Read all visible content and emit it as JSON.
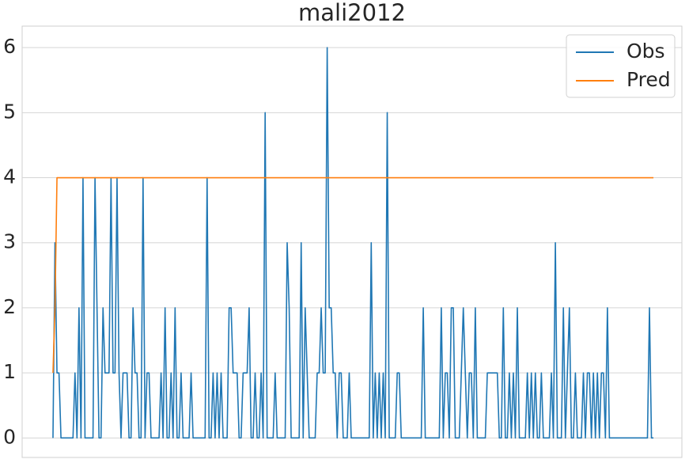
{
  "chart_data": {
    "type": "line",
    "title": "mali2012",
    "series": [
      {
        "name": "Obs",
        "color": "#1f77b4",
        "values": [
          0,
          3,
          1,
          1,
          0,
          0,
          0,
          0,
          0,
          0,
          0,
          1,
          0,
          2,
          0,
          4,
          0,
          0,
          0,
          0,
          0,
          4,
          2,
          0,
          0,
          2,
          1,
          1,
          1,
          4,
          1,
          1,
          4,
          1,
          0,
          1,
          1,
          1,
          0,
          0,
          2,
          1,
          1,
          0,
          0,
          4,
          0,
          1,
          1,
          0,
          0,
          0,
          0,
          0,
          1,
          0,
          2,
          0,
          0,
          1,
          0,
          2,
          0,
          0,
          1,
          0,
          0,
          0,
          0,
          1,
          0,
          0,
          0,
          0,
          0,
          0,
          0,
          4,
          0,
          0,
          1,
          0,
          1,
          0,
          1,
          0,
          0,
          0,
          2,
          2,
          1,
          1,
          1,
          0,
          0,
          1,
          1,
          1,
          2,
          0,
          0,
          1,
          0,
          0,
          1,
          0,
          5,
          0,
          0,
          0,
          0,
          1,
          0,
          0,
          0,
          0,
          0,
          3,
          2,
          0,
          0,
          0,
          0,
          0,
          3,
          0,
          2,
          1,
          0,
          0,
          0,
          0,
          1,
          1,
          2,
          1,
          1,
          6,
          2,
          2,
          1,
          1,
          0,
          1,
          1,
          0,
          0,
          0,
          1,
          0,
          0,
          0,
          0,
          0,
          0,
          0,
          0,
          0,
          0,
          3,
          0,
          1,
          0,
          1,
          0,
          1,
          0,
          5,
          0,
          0,
          0,
          0,
          1,
          1,
          0,
          0,
          0,
          0,
          0,
          0,
          0,
          0,
          0,
          0,
          0,
          2,
          0,
          0,
          0,
          0,
          0,
          0,
          0,
          0,
          2,
          0,
          1,
          1,
          0,
          2,
          2,
          0,
          0,
          0,
          1,
          2,
          1,
          0,
          1,
          1,
          0,
          2,
          0,
          0,
          0,
          0,
          0,
          1,
          1,
          1,
          1,
          1,
          1,
          0,
          0,
          2,
          0,
          0,
          1,
          0,
          1,
          0,
          2,
          0,
          0,
          0,
          0,
          1,
          0,
          1,
          0,
          1,
          0,
          0,
          1,
          0,
          0,
          0,
          0,
          1,
          0,
          3,
          0,
          0,
          0,
          2,
          0,
          1,
          2,
          0,
          0,
          1,
          0,
          0,
          0,
          1,
          0,
          1,
          1,
          0,
          1,
          0,
          1,
          0,
          1,
          1,
          0,
          2,
          0,
          0,
          0,
          0,
          0,
          0,
          0,
          0,
          0,
          0,
          0,
          0,
          0,
          0,
          0,
          0,
          0,
          0,
          0,
          0,
          2,
          0,
          0
        ]
      },
      {
        "name": "Pred",
        "color": "#ff7f0e",
        "values": [
          1,
          2,
          4,
          4,
          4,
          4,
          4,
          4,
          4,
          4,
          4,
          4,
          4,
          4,
          4,
          4,
          4,
          4,
          4,
          4,
          4,
          4,
          4,
          4,
          4,
          4,
          4,
          4,
          4,
          4,
          4,
          4,
          4,
          4,
          4,
          4,
          4,
          4,
          4,
          4,
          4,
          4,
          4,
          4,
          4,
          4,
          4,
          4,
          4,
          4,
          4,
          4,
          4,
          4,
          4,
          4,
          4,
          4,
          4,
          4,
          4,
          4,
          4,
          4,
          4,
          4,
          4,
          4,
          4,
          4,
          4,
          4,
          4,
          4,
          4,
          4,
          4,
          4,
          4,
          4,
          4,
          4,
          4,
          4,
          4,
          4,
          4,
          4,
          4,
          4,
          4,
          4,
          4,
          4,
          4,
          4,
          4,
          4,
          4,
          4,
          4,
          4,
          4,
          4,
          4,
          4,
          4,
          4,
          4,
          4,
          4,
          4,
          4,
          4,
          4,
          4,
          4,
          4,
          4,
          4,
          4,
          4,
          4,
          4,
          4,
          4,
          4,
          4,
          4,
          4,
          4,
          4,
          4,
          4,
          4,
          4,
          4,
          4,
          4,
          4,
          4,
          4,
          4,
          4,
          4,
          4,
          4,
          4,
          4,
          4,
          4,
          4,
          4,
          4,
          4,
          4,
          4,
          4,
          4,
          4,
          4,
          4,
          4,
          4,
          4,
          4,
          4,
          4,
          4,
          4,
          4,
          4,
          4,
          4,
          4,
          4,
          4,
          4,
          4,
          4,
          4,
          4,
          4,
          4,
          4,
          4,
          4,
          4,
          4,
          4,
          4,
          4,
          4,
          4,
          4,
          4,
          4,
          4,
          4,
          4,
          4,
          4,
          4,
          4,
          4,
          4,
          4,
          4,
          4,
          4,
          4,
          4,
          4,
          4,
          4,
          4,
          4,
          4,
          4,
          4,
          4,
          4,
          4,
          4,
          4,
          4,
          4,
          4,
          4,
          4,
          4,
          4,
          4,
          4,
          4,
          4,
          4,
          4,
          4,
          4,
          4,
          4,
          4,
          4,
          4,
          4,
          4,
          4,
          4,
          4,
          4,
          4,
          4,
          4,
          4,
          4,
          4,
          4,
          4,
          4,
          4,
          4,
          4,
          4,
          4,
          4,
          4,
          4,
          4,
          4,
          4,
          4,
          4,
          4,
          4,
          4,
          4,
          4,
          4,
          4,
          4,
          4,
          4,
          4,
          4,
          4,
          4,
          4,
          4,
          4,
          4,
          4,
          4,
          4,
          4,
          4,
          4,
          4,
          4,
          4,
          4,
          null
        ]
      }
    ],
    "xlim": [
      -15.4,
      314.2
    ],
    "ylim": [
      -0.3,
      6.33
    ],
    "yticks": [
      0,
      1,
      2,
      3,
      4,
      5,
      6
    ],
    "grid": true,
    "legend": "upper right"
  }
}
